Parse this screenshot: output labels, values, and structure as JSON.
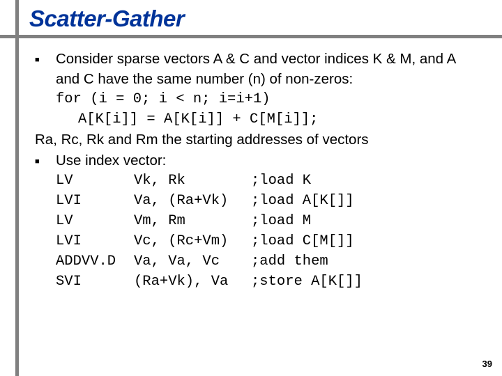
{
  "title": "Scatter-Gather",
  "bullet1": {
    "text": "Consider sparse vectors A & C and vector indices K & M, and A and C have the same number (n) of non-zeros:",
    "code1": "for (i = 0; i < n; i=i+1)",
    "code2": "A[K[i]] = A[K[i]] + C[M[i]];"
  },
  "plain_line": "Ra, Rc, Rk and Rm the starting addresses of vectors",
  "bullet2": {
    "text": "Use index vector:"
  },
  "asm": [
    {
      "op": "LV",
      "args": "Vk, Rk",
      "comment": ";load K",
      "indent": false
    },
    {
      "op": "LVI",
      "args": "Va, (Ra+Vk)",
      "comment": ";load A[K[]]",
      "indent": false
    },
    {
      "op": "LV",
      "args": "Vm, Rm",
      "comment": ";load M",
      "indent": false
    },
    {
      "op": "LVI",
      "args": "Vc, (Rc+Vm)",
      "comment": ";load C[M[]]",
      "indent": false
    },
    {
      "op": "ADDVV.D",
      "args": "Va, Va, Vc",
      "comment": ";add them",
      "indent": true
    },
    {
      "op": "SVI",
      "args": "(Ra+Vk), Va",
      "comment": ";store A[K[]]",
      "indent": false
    }
  ],
  "page_number": "39",
  "colors": {
    "title": "#003399",
    "bar": "#808080",
    "bg": "#ffffff",
    "text": "#000000"
  }
}
